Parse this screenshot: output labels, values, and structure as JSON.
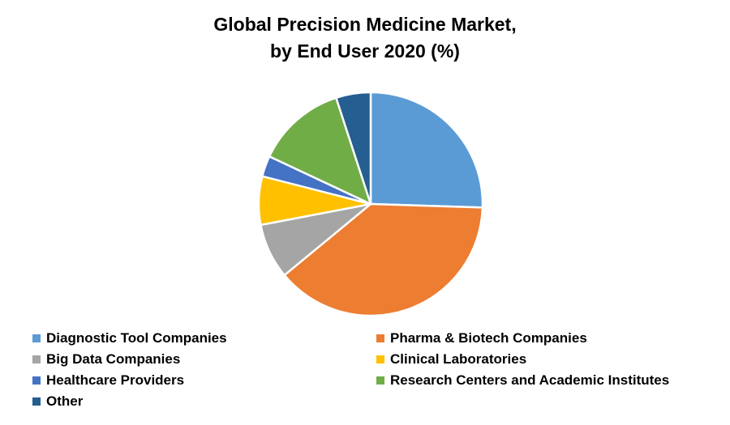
{
  "chart_data": {
    "type": "pie",
    "title_lines": [
      "Global Precision Medicine Market,",
      "by End User 2020 (%)"
    ],
    "slices": [
      {
        "label": "Diagnostic Tool Companies",
        "value": 25.5,
        "color": "#5B9BD5"
      },
      {
        "label": "Pharma & Biotech Companies",
        "value": 38.5,
        "color": "#ED7D31"
      },
      {
        "label": "Big Data Companies",
        "value": 8,
        "color": "#A5A5A5"
      },
      {
        "label": "Clinical Laboratories",
        "value": 7,
        "color": "#FFC000"
      },
      {
        "label": "Healthcare Providers",
        "value": 3,
        "color": "#4472C4"
      },
      {
        "label": "Research Centers and Academic Institutes",
        "value": 13,
        "color": "#70AD47"
      },
      {
        "label": "Other",
        "value": 5,
        "color": "#255E91"
      }
    ],
    "legend_position": "bottom",
    "start_angle": "12 o'clock",
    "direction": "clockwise"
  }
}
